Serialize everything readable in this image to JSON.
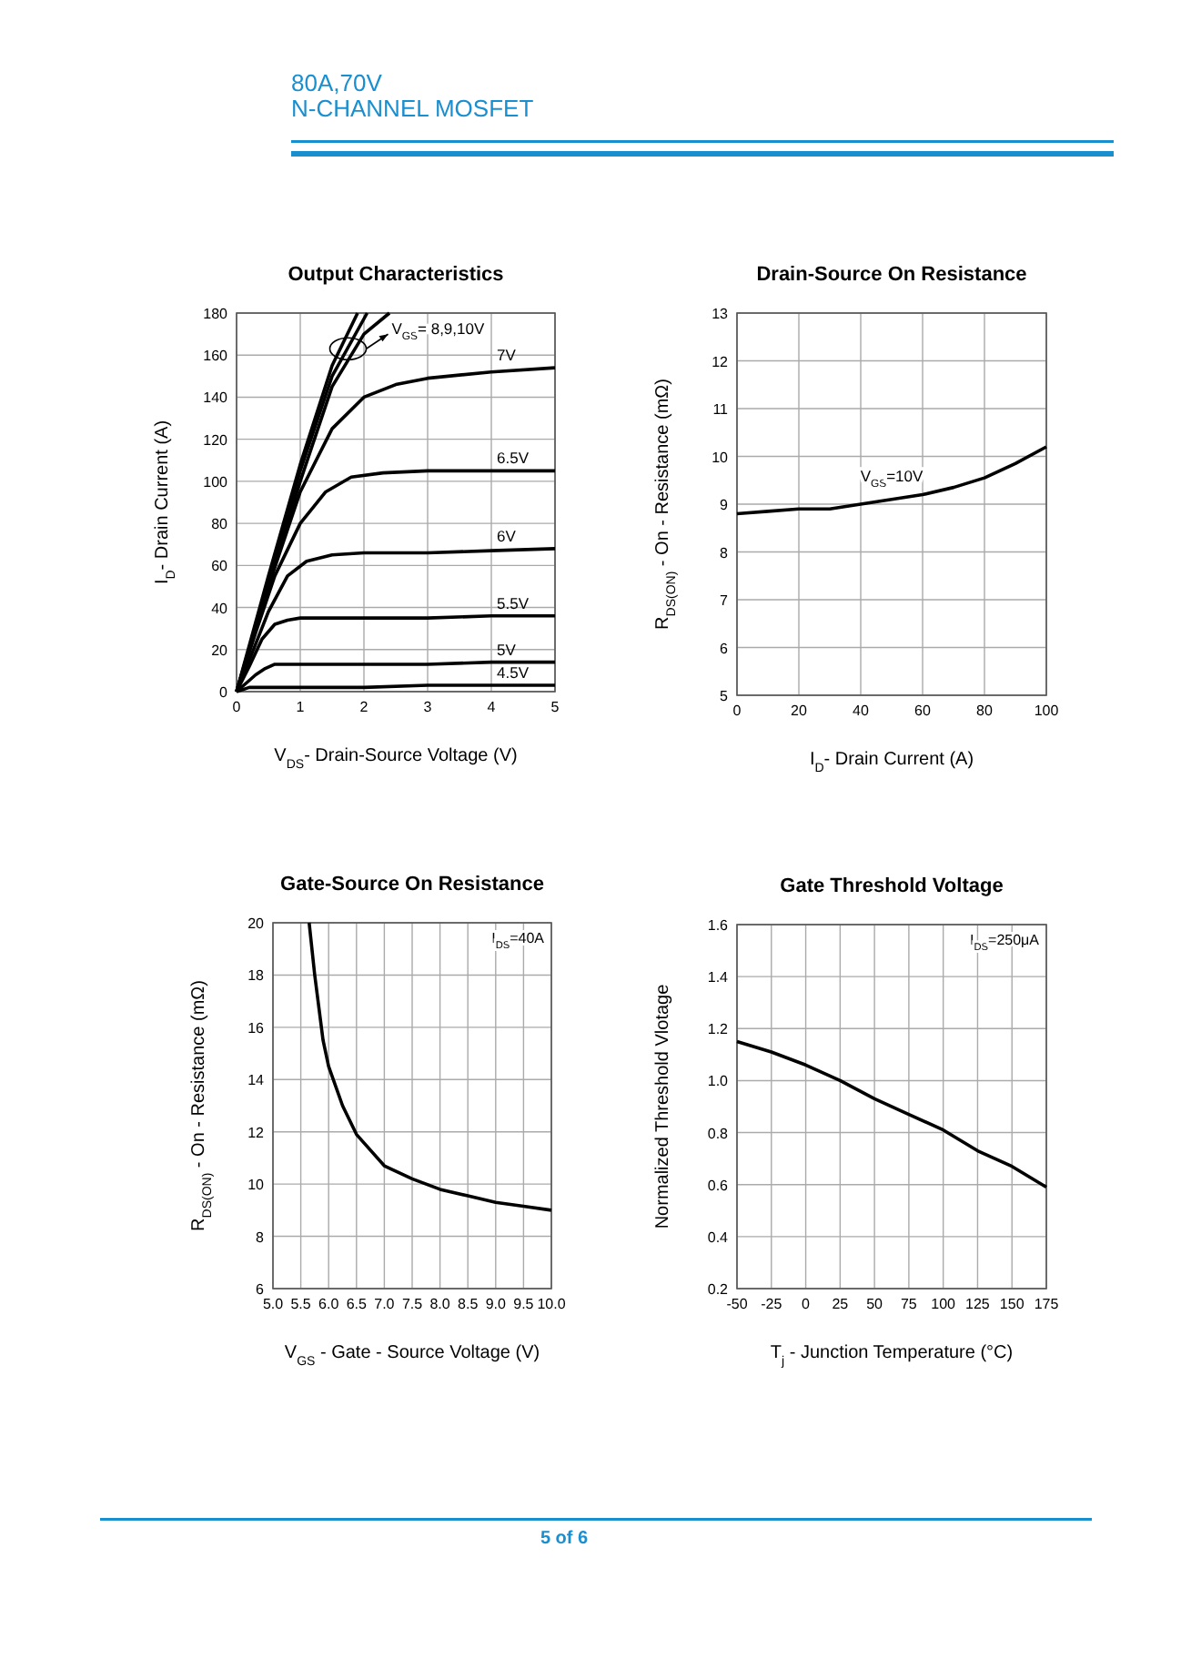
{
  "chart_data": [
    {
      "type": "other",
      "annotations": [
        "80A,70V",
        "N-CHANNEL MOSFET",
        "5 of 6"
      ]
    },
    {
      "type": "line",
      "title": "Output Characteristics",
      "xlabel": "V$_{DS}$- Drain-Source Voltage (V)",
      "ylabel": "I$_{D}$- Drain Current (A)",
      "xlim": [
        0,
        5
      ],
      "xticks": [
        0,
        1,
        2,
        3,
        4,
        5
      ],
      "ylim": [
        0,
        180
      ],
      "yticks": [
        0,
        20,
        40,
        60,
        80,
        100,
        120,
        140,
        160,
        180
      ],
      "grid": true,
      "marker": "none",
      "line_style": "solid",
      "annotations": [
        {
          "text": "V$_{GS}$= 8,9,10V",
          "x": 1.75,
          "y": 163
        }
      ],
      "series": [
        {
          "name": "4.5V",
          "color": "#000000",
          "x": [
            0,
            0.2,
            0.4,
            1,
            2,
            3,
            4,
            5
          ],
          "values": [
            0,
            2,
            2,
            2,
            2,
            3,
            3,
            3
          ]
        },
        {
          "name": "5V",
          "color": "#000000",
          "x": [
            0,
            0.15,
            0.3,
            0.45,
            0.6,
            1,
            2,
            3,
            4,
            5
          ],
          "values": [
            0,
            4,
            8,
            11,
            13,
            13,
            13,
            13,
            14,
            14
          ]
        },
        {
          "name": "5.5V",
          "color": "#000000",
          "x": [
            0,
            0.2,
            0.4,
            0.6,
            0.8,
            1,
            2,
            3,
            4,
            5
          ],
          "values": [
            0,
            12,
            25,
            32,
            34,
            35,
            35,
            35,
            36,
            36
          ]
        },
        {
          "name": "6V",
          "color": "#000000",
          "x": [
            0,
            0.2,
            0.5,
            0.8,
            1.1,
            1.5,
            2,
            3,
            4,
            5
          ],
          "values": [
            0,
            15,
            38,
            55,
            62,
            65,
            66,
            66,
            67,
            68
          ]
        },
        {
          "name": "6.5V",
          "color": "#000000",
          "x": [
            0,
            0.3,
            0.6,
            1,
            1.4,
            1.8,
            2.3,
            3,
            4,
            5
          ],
          "values": [
            0,
            28,
            55,
            80,
            95,
            102,
            104,
            105,
            105,
            105
          ]
        },
        {
          "name": "7V",
          "color": "#000000",
          "x": [
            0,
            0.5,
            1,
            1.5,
            2,
            2.5,
            3,
            4,
            5
          ],
          "values": [
            0,
            50,
            95,
            125,
            140,
            146,
            149,
            152,
            154
          ]
        },
        {
          "color": "#000000",
          "x": [
            0,
            0.5,
            1,
            1.5,
            2,
            2.4
          ],
          "values": [
            0,
            50,
            100,
            145,
            170,
            180
          ]
        },
        {
          "color": "#000000",
          "x": [
            0,
            0.5,
            1,
            1.5,
            2.05
          ],
          "values": [
            0,
            52,
            105,
            150,
            180
          ]
        },
        {
          "color": "#000000",
          "x": [
            0,
            0.5,
            1,
            1.5,
            1.9
          ],
          "values": [
            0,
            55,
            108,
            155,
            180
          ]
        }
      ]
    },
    {
      "type": "line",
      "title": "Drain-Source On Resistance",
      "xlabel": "I$_{D}$- Drain Current (A)",
      "ylabel": "R$_{DS(ON)}$ - On - Resistance (mΩ)",
      "xlim": [
        0,
        100
      ],
      "xticks": [
        0,
        20,
        40,
        60,
        80,
        100
      ],
      "ylim": [
        5,
        13
      ],
      "yticks": [
        5,
        6,
        7,
        8,
        9,
        10,
        11,
        12,
        13
      ],
      "grid": true,
      "marker": "none",
      "line_style": "solid",
      "annotations": [
        {
          "text": "V$_{GS}$=10V",
          "x": 50,
          "y": 9.1
        }
      ],
      "series": [
        {
          "color": "#000000",
          "x": [
            0,
            10,
            20,
            30,
            40,
            50,
            60,
            70,
            80,
            90,
            100
          ],
          "values": [
            8.8,
            8.85,
            8.9,
            8.9,
            9.0,
            9.1,
            9.2,
            9.35,
            9.55,
            9.85,
            10.2
          ]
        }
      ]
    },
    {
      "type": "line",
      "title": "Gate-Source On Resistance",
      "xlabel": "V$_{GS}$ - Gate - Source Voltage (V)",
      "ylabel": "R$_{DS(ON)}$ - On - Resistance (mΩ)",
      "xlim": [
        5,
        10
      ],
      "xticks": [
        {
          "value": 5,
          "label": "5.0"
        },
        5.5,
        {
          "value": 6,
          "label": "6.0"
        },
        6.5,
        {
          "value": 7,
          "label": "7.0"
        },
        7.5,
        {
          "value": 8,
          "label": "8.0"
        },
        8.5,
        {
          "value": 9,
          "label": "9.0"
        },
        9.5,
        {
          "value": 10,
          "label": "10.0"
        }
      ],
      "ylim": [
        6,
        20
      ],
      "yticks": [
        6,
        8,
        10,
        12,
        14,
        16,
        18,
        20
      ],
      "grid": true,
      "marker": "none",
      "line_style": "solid",
      "annotations": [
        "I$_{DS}$=40A"
      ],
      "series": [
        {
          "color": "#000000",
          "x": [
            5.65,
            5.75,
            5.9,
            6.0,
            6.25,
            6.5,
            7.0,
            7.5,
            8.0,
            8.5,
            9.0,
            9.5,
            10.0
          ],
          "values": [
            20,
            18,
            15.5,
            14.5,
            13,
            11.9,
            10.7,
            10.2,
            9.8,
            9.55,
            9.3,
            9.15,
            9.0
          ]
        }
      ]
    },
    {
      "type": "line",
      "title": "Gate Threshold Voltage",
      "xlabel": "T$_{j}$ - Junction Temperature (°C)",
      "ylabel": "Normalized Threshold Vlotage",
      "xlim": [
        -50,
        175
      ],
      "xticks": [
        -50,
        -25,
        0,
        25,
        50,
        75,
        100,
        125,
        150,
        175
      ],
      "ylim": [
        0.2,
        1.6
      ],
      "yticks": [
        0.2,
        0.4,
        0.6,
        0.8,
        {
          "value": 1.0,
          "label": "1.0"
        },
        1.2,
        1.4,
        1.6
      ],
      "grid": true,
      "marker": "none",
      "line_style": "solid",
      "annotations": [
        "I$_{DS}$=250μA"
      ],
      "series": [
        {
          "color": "#000000",
          "x": [
            -50,
            -25,
            0,
            25,
            50,
            75,
            100,
            125,
            150,
            175
          ],
          "values": [
            1.15,
            1.11,
            1.06,
            1.0,
            0.93,
            0.87,
            0.81,
            0.73,
            0.67,
            0.59
          ]
        }
      ]
    }
  ]
}
